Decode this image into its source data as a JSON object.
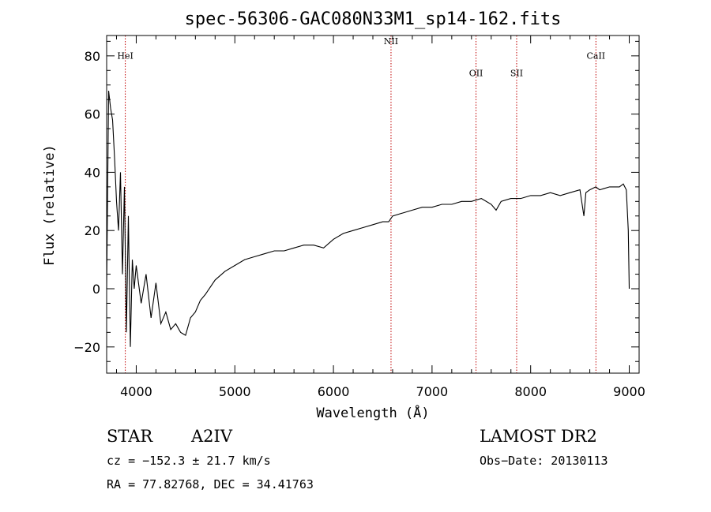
{
  "chart_data": {
    "type": "line",
    "title": "spec-56306-GAC080N33M1_sp14-162.fits",
    "xlabel": "Wavelength (Å)",
    "ylabel": "Flux (relative)",
    "xlim": [
      3700,
      9100
    ],
    "ylim": [
      -29,
      87
    ],
    "x_ticks": [
      4000,
      5000,
      6000,
      7000,
      8000,
      9000
    ],
    "y_ticks": [
      -20,
      0,
      20,
      40,
      60,
      80
    ],
    "grid": false,
    "series": [
      {
        "x": [
          3700,
          3720,
          3740,
          3760,
          3780,
          3800,
          3820,
          3840,
          3860,
          3880,
          3900,
          3920,
          3940,
          3960,
          3980,
          4000,
          4050,
          4100,
          4150,
          4200,
          4250,
          4300,
          4350,
          4400,
          4450,
          4500,
          4550,
          4600,
          4650,
          4700,
          4800,
          4900,
          5000,
          5100,
          5200,
          5300,
          5400,
          5500,
          5600,
          5700,
          5800,
          5900,
          6000,
          6100,
          6200,
          6300,
          6400,
          6500,
          6560,
          6600,
          6700,
          6800,
          6900,
          7000,
          7100,
          7200,
          7300,
          7400,
          7500,
          7600,
          7650,
          7700,
          7800,
          7900,
          8000,
          8100,
          8200,
          8300,
          8400,
          8500,
          8540,
          8560,
          8600,
          8660,
          8700,
          8800,
          8900,
          8940,
          8970,
          8990,
          9000
        ],
        "y": [
          0,
          68,
          62,
          58,
          45,
          30,
          20,
          40,
          5,
          35,
          -15,
          25,
          -20,
          10,
          0,
          8,
          -5,
          5,
          -10,
          2,
          -12,
          -8,
          -14,
          -12,
          -15,
          -16,
          -10,
          -8,
          -4,
          -2,
          3,
          6,
          8,
          10,
          11,
          12,
          13,
          13,
          14,
          15,
          15,
          14,
          17,
          19,
          20,
          21,
          22,
          23,
          23,
          25,
          26,
          27,
          28,
          28,
          29,
          29,
          30,
          30,
          31,
          29,
          27,
          30,
          31,
          31,
          32,
          32,
          33,
          32,
          33,
          34,
          25,
          33,
          34,
          35,
          34,
          35,
          35,
          36,
          34,
          20,
          0
        ]
      }
    ],
    "lines": [
      {
        "name": "HeI",
        "x": 3889,
        "label_y": 79
      },
      {
        "name": "NII",
        "x": 6584,
        "label_y": 84
      },
      {
        "name": "OII",
        "x": 7446,
        "label_y": 73
      },
      {
        "name": "SII",
        "x": 7858,
        "label_y": 73
      },
      {
        "name": "CaII",
        "x": 8662,
        "label_y": 79
      }
    ]
  },
  "info": {
    "class": "STAR",
    "subclass": "A2IV",
    "survey": "LAMOST DR2",
    "cz": "cz = −152.3 ± 21.7 km/s",
    "obs_date": "Obs−Date: 20130113",
    "coords": "RA =  77.82768, DEC =  34.41763"
  },
  "colors": {
    "axes": "#000000",
    "spectrum": "#000000",
    "line_markers": "#c00000"
  }
}
